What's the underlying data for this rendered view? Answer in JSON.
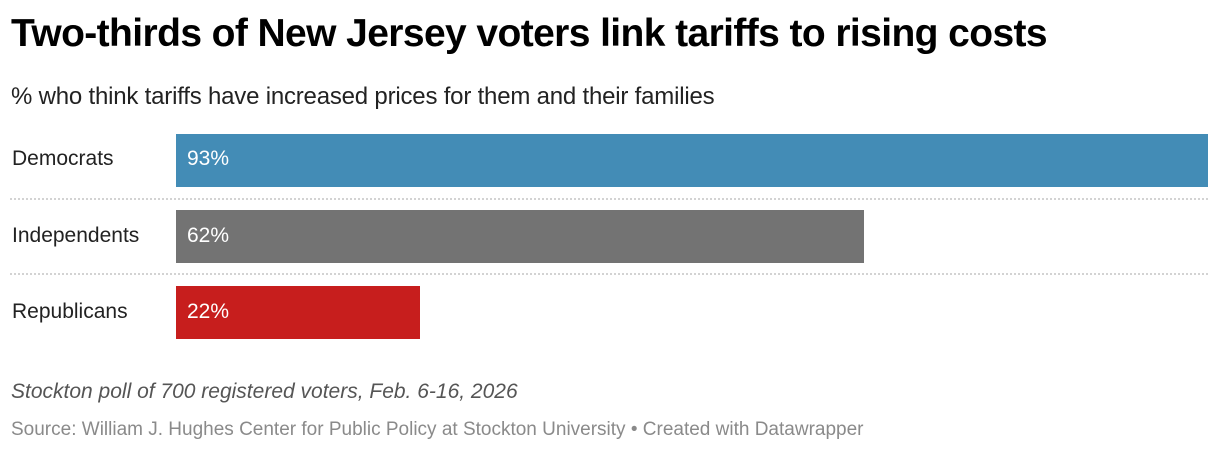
{
  "chart_data": {
    "type": "bar",
    "orientation": "horizontal",
    "title": "Two-thirds of New Jersey voters link tariffs to rising costs",
    "subtitle": "% who think tariffs have increased prices for them and their families",
    "categories": [
      "Democrats",
      "Independents",
      "Republicans"
    ],
    "values": [
      93,
      62,
      22
    ],
    "value_labels": [
      "93%",
      "62%",
      "22%"
    ],
    "colors": [
      "#438cb6",
      "#737373",
      "#c71e1d"
    ],
    "xlim": [
      0,
      93
    ],
    "grid": false,
    "notes": "Stockton poll of 700 registered voters, Feb. 6-16, 2026",
    "source": "Source: William J. Hughes Center for Public Policy at Stockton University • Created with Datawrapper"
  }
}
